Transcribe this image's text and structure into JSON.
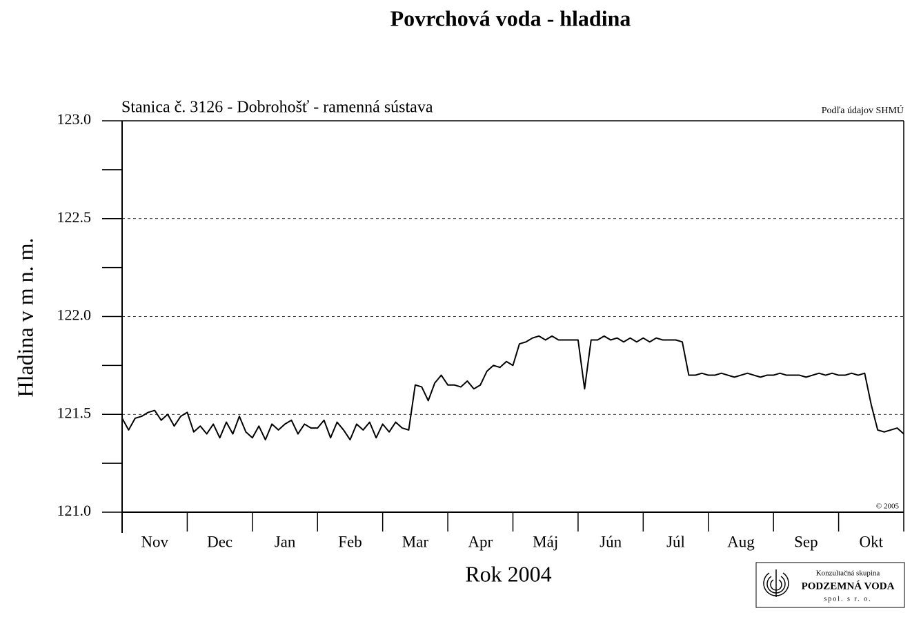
{
  "chart_data": {
    "type": "line",
    "title": "Povrchová voda - hladina",
    "subtitle": "Stanica č. 3126 - Dobrohošť -   ramenná sústava",
    "source": "Podľa údajov SHMÚ",
    "copyright": "© 2005",
    "y_label": "Hladina v m n. m.",
    "x_label": "Rok 2004",
    "xlim": [
      0,
      12
    ],
    "xticks": [
      {
        "value": 0.5,
        "label": "Nov"
      },
      {
        "value": 1.5,
        "label": "Dec"
      },
      {
        "value": 2.5,
        "label": "Jan"
      },
      {
        "value": 3.5,
        "label": "Feb"
      },
      {
        "value": 4.5,
        "label": "Mar"
      },
      {
        "value": 5.5,
        "label": "Apr"
      },
      {
        "value": 6.5,
        "label": "Máj"
      },
      {
        "value": 7.5,
        "label": "Jún"
      },
      {
        "value": 8.5,
        "label": "Júl"
      },
      {
        "value": 9.5,
        "label": "Aug"
      },
      {
        "value": 10.5,
        "label": "Sep"
      },
      {
        "value": 11.5,
        "label": "Okt"
      }
    ],
    "ylim": [
      121.0,
      123.0
    ],
    "yticks": [
      {
        "value": 121.0,
        "label": "121.0"
      },
      {
        "value": 121.5,
        "label": "121.5"
      },
      {
        "value": 122.0,
        "label": "122.0"
      },
      {
        "value": 122.5,
        "label": "122.5"
      },
      {
        "value": 123.0,
        "label": "123.0"
      }
    ],
    "grid": true,
    "x": [
      0.0,
      0.1,
      0.2,
      0.3,
      0.4,
      0.5,
      0.6,
      0.7,
      0.8,
      0.9,
      1.0,
      1.1,
      1.2,
      1.3,
      1.4,
      1.5,
      1.6,
      1.7,
      1.8,
      1.9,
      2.0,
      2.1,
      2.2,
      2.3,
      2.4,
      2.5,
      2.6,
      2.7,
      2.8,
      2.9,
      3.0,
      3.1,
      3.2,
      3.3,
      3.4,
      3.5,
      3.6,
      3.7,
      3.8,
      3.9,
      4.0,
      4.1,
      4.2,
      4.3,
      4.4,
      4.5,
      4.6,
      4.7,
      4.8,
      4.9,
      5.0,
      5.1,
      5.2,
      5.3,
      5.4,
      5.5,
      5.6,
      5.7,
      5.8,
      5.9,
      6.0,
      6.1,
      6.2,
      6.3,
      6.4,
      6.5,
      6.6,
      6.7,
      6.8,
      6.9,
      7.0,
      7.1,
      7.2,
      7.3,
      7.4,
      7.5,
      7.6,
      7.7,
      7.8,
      7.9,
      8.0,
      8.1,
      8.2,
      8.3,
      8.4,
      8.5,
      8.6,
      8.7,
      8.8,
      8.9,
      9.0,
      9.1,
      9.2,
      9.3,
      9.4,
      9.5,
      9.6,
      9.7,
      9.8,
      9.9,
      10.0,
      10.1,
      10.2,
      10.3,
      10.4,
      10.5,
      10.6,
      10.7,
      10.8,
      10.9,
      11.0,
      11.1,
      11.2,
      11.3,
      11.4,
      11.5,
      11.6,
      11.7,
      11.8,
      11.9,
      12.0
    ],
    "series": [
      {
        "color": "#000000",
        "values": [
          121.48,
          121.42,
          121.48,
          121.49,
          121.51,
          121.52,
          121.47,
          121.5,
          121.44,
          121.49,
          121.51,
          121.41,
          121.44,
          121.4,
          121.45,
          121.38,
          121.46,
          121.4,
          121.49,
          121.41,
          121.38,
          121.44,
          121.37,
          121.45,
          121.42,
          121.45,
          121.47,
          121.4,
          121.45,
          121.43,
          121.43,
          121.47,
          121.38,
          121.46,
          121.42,
          121.37,
          121.45,
          121.42,
          121.46,
          121.38,
          121.45,
          121.41,
          121.46,
          121.43,
          121.42,
          121.65,
          121.64,
          121.57,
          121.66,
          121.7,
          121.65,
          121.65,
          121.64,
          121.67,
          121.63,
          121.65,
          121.72,
          121.75,
          121.74,
          121.77,
          121.75,
          121.86,
          121.87,
          121.89,
          121.9,
          121.88,
          121.9,
          121.88,
          121.88,
          121.88,
          121.88,
          121.63,
          121.88,
          121.88,
          121.9,
          121.88,
          121.89,
          121.87,
          121.89,
          121.87,
          121.89,
          121.87,
          121.89,
          121.88,
          121.88,
          121.88,
          121.87,
          121.7,
          121.7,
          121.71,
          121.7,
          121.7,
          121.71,
          121.7,
          121.69,
          121.7,
          121.71,
          121.7,
          121.69,
          121.7,
          121.7,
          121.71,
          121.7,
          121.7,
          121.7,
          121.69,
          121.7,
          121.71,
          121.7,
          121.71,
          121.7,
          121.7,
          121.71,
          121.7,
          121.71,
          121.55,
          121.42,
          121.41,
          121.42,
          121.43,
          121.4
        ]
      }
    ]
  },
  "logo": {
    "line1": "Konzultačná skupina",
    "line2": "PODZEMNÁ VODA",
    "line3": "spol. s r. o."
  }
}
